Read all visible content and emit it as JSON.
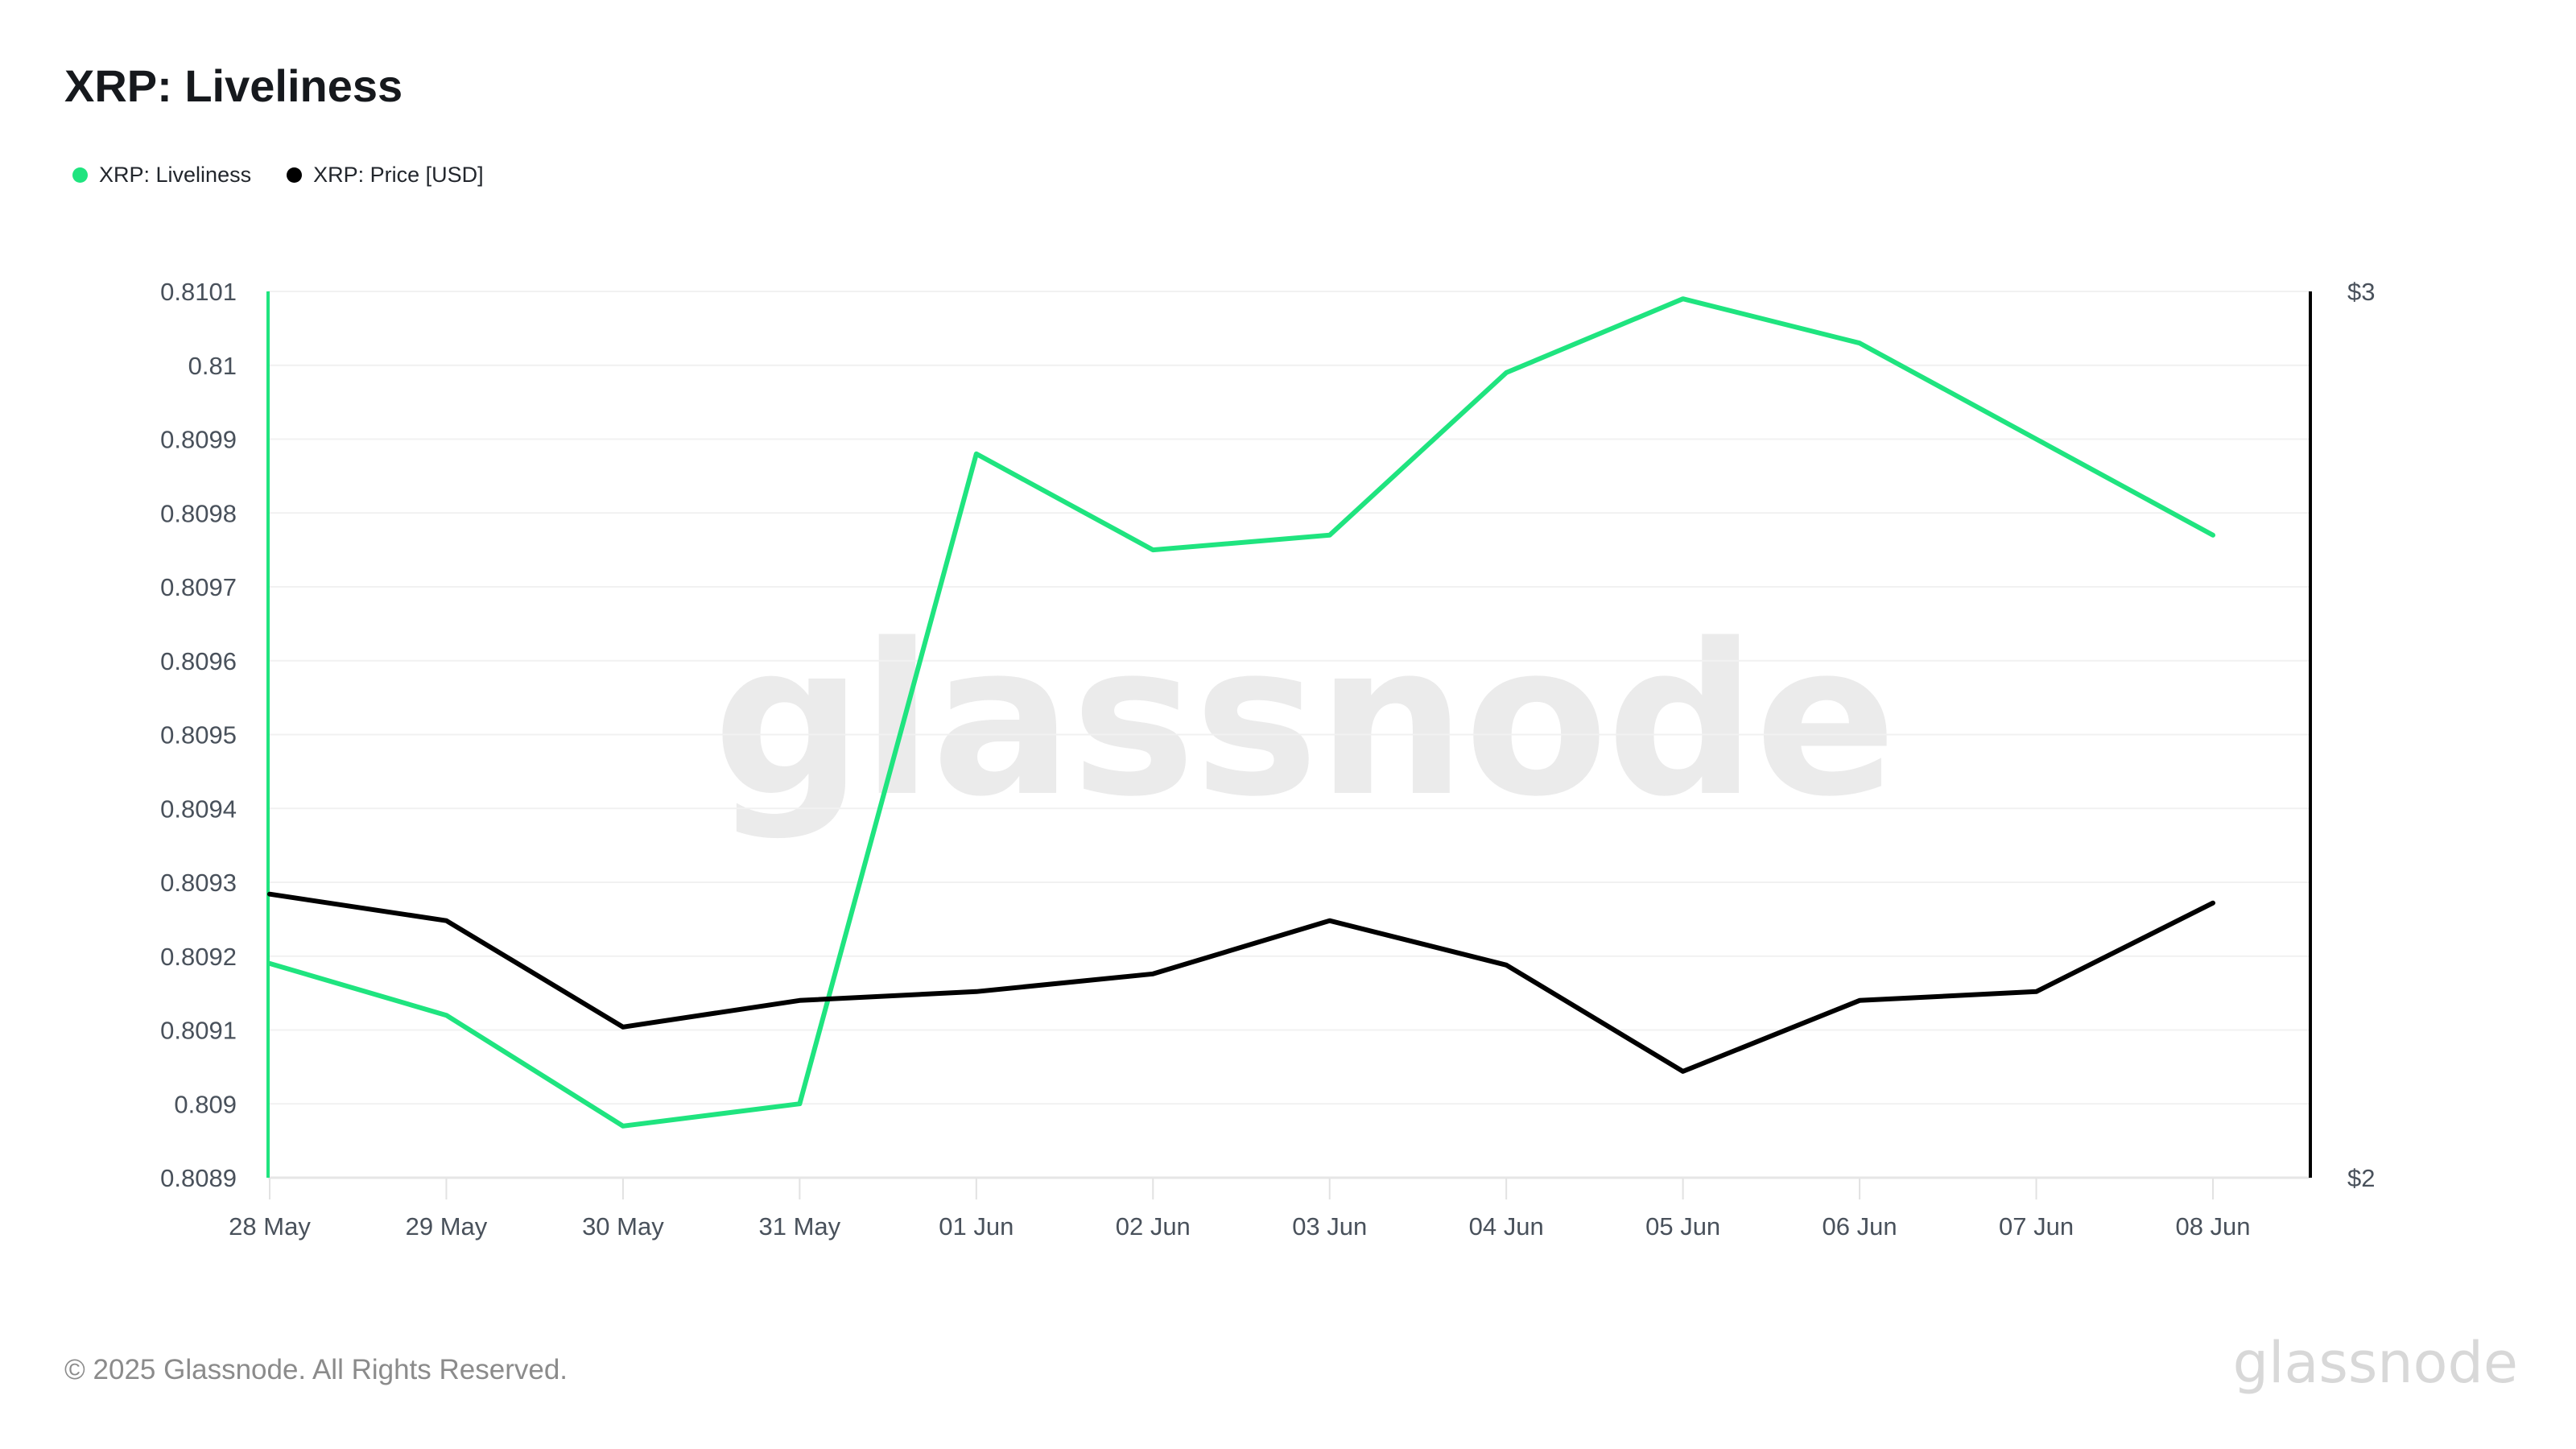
{
  "header": {
    "title": "XRP: Liveliness"
  },
  "legend": {
    "items": [
      {
        "label": "XRP: Liveliness",
        "color": "#1fe47f"
      },
      {
        "label": "XRP: Price [USD]",
        "color": "#000000"
      }
    ]
  },
  "watermark": {
    "text": "glassnode"
  },
  "footer": {
    "copyright": "© 2025 Glassnode. All Rights Reserved.",
    "brand": "glassnode"
  },
  "chart_data": {
    "type": "line",
    "title": "XRP: Liveliness",
    "categories": [
      "28 May",
      "29 May",
      "30 May",
      "31 May",
      "01 Jun",
      "02 Jun",
      "03 Jun",
      "04 Jun",
      "05 Jun",
      "06 Jun",
      "07 Jun",
      "08 Jun"
    ],
    "series": [
      {
        "name": "XRP: Liveliness",
        "axis": "left",
        "color": "#1fe47f",
        "values": [
          0.80919,
          0.80912,
          0.80897,
          0.809,
          0.80988,
          0.80975,
          0.80977,
          0.80999,
          0.81009,
          0.81003,
          0.8099,
          0.80977
        ]
      },
      {
        "name": "XRP: Price [USD]",
        "axis": "right",
        "color": "#000000",
        "values": [
          2.32,
          2.29,
          2.17,
          2.2,
          2.21,
          2.23,
          2.29,
          2.24,
          2.12,
          2.2,
          2.21,
          2.31
        ]
      }
    ],
    "left_axis": {
      "min": 0.8089,
      "max": 0.8101,
      "tick_labels": [
        "0.8101",
        "0.81",
        "0.8099",
        "0.8098",
        "0.8097",
        "0.8096",
        "0.8095",
        "0.8094",
        "0.8093",
        "0.8092",
        "0.8091",
        "0.809",
        "0.8089"
      ]
    },
    "right_axis": {
      "min": 2,
      "max": 3,
      "tick_labels": [
        "$3",
        "$2"
      ]
    },
    "grid": "horizontal",
    "legend_position": "top-left"
  }
}
